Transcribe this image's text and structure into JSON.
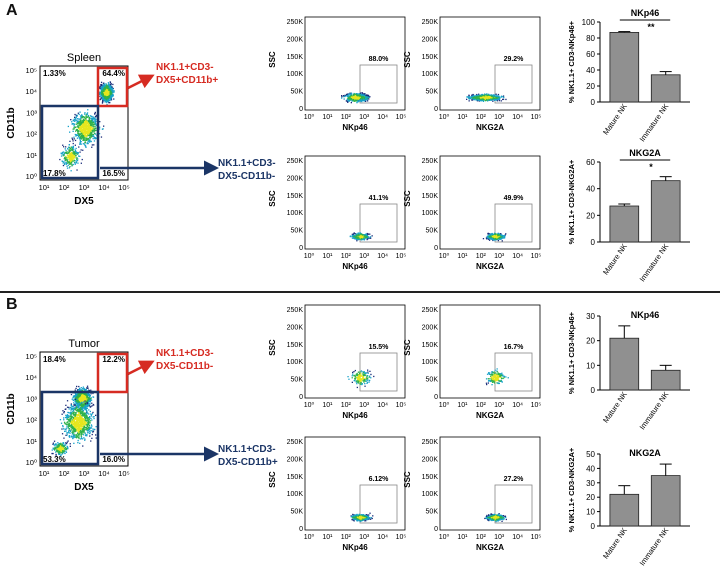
{
  "panels": [
    {
      "letter": "A",
      "main": {
        "title": "Spleen",
        "ylabel": "CD11b",
        "xlabel": "DX5",
        "ticks": [
          "10¹",
          "10²",
          "10³",
          "10⁴",
          "10⁵"
        ],
        "yticks": [
          "10⁵",
          "10⁴",
          "10³",
          "10²",
          "10¹",
          "10⁰"
        ],
        "quadrants": {
          "tl": "1.33%",
          "tr": "64.4%",
          "bl": "17.8%",
          "br": "16.5%"
        },
        "hot": "tr"
      },
      "arrow_top": {
        "text1": "NK1.1+CD3-",
        "text2": "DX5+CD11b+"
      },
      "arrow_bottom": {
        "text1": "NK1.1+CD3-",
        "text2": "DX5-CD11b-"
      },
      "facs": [
        {
          "xlabel": "NKp46",
          "ylabel": "SSC",
          "gate_pct": "88.0%",
          "density": "hot"
        },
        {
          "xlabel": "NKG2A",
          "ylabel": "SSC",
          "gate_pct": "29.2%",
          "density": "wide"
        },
        {
          "xlabel": "NKp46",
          "ylabel": "SSC",
          "gate_pct": "41.1%",
          "density": "mid"
        },
        {
          "xlabel": "NKG2A",
          "ylabel": "SSC",
          "gate_pct": "49.9%",
          "density": "mid"
        }
      ],
      "bars": [
        {
          "title": "NKp46",
          "ylabel": "% NK1.1+ CD3-NKp46+",
          "ylim": [
            0,
            100
          ],
          "yticks": [
            "100",
            "80",
            "60",
            "40",
            "20",
            "0"
          ],
          "categories": [
            "Mature NK",
            "Immature NK"
          ],
          "values": [
            87,
            34
          ],
          "errors": [
            1,
            4
          ],
          "sig": "**"
        },
        {
          "title": "NKG2A",
          "ylabel": "% NK1.1+ CD3-NKG2A+",
          "ylim": [
            0,
            60
          ],
          "yticks": [
            "60",
            "40",
            "20",
            "0"
          ],
          "categories": [
            "Mature NK",
            "Immature NK"
          ],
          "values": [
            27,
            46
          ],
          "errors": [
            1.5,
            3
          ],
          "sig": "*"
        }
      ]
    },
    {
      "letter": "B",
      "main": {
        "title": "Tumor",
        "ylabel": "CD11b",
        "xlabel": "DX5",
        "ticks": [
          "10¹",
          "10²",
          "10³",
          "10⁴",
          "10⁵"
        ],
        "yticks": [
          "10⁵",
          "10⁴",
          "10³",
          "10²",
          "10¹",
          "10⁰"
        ],
        "quadrants": {
          "tl": "18.4%",
          "tr": "12.2%",
          "bl": "53.3%",
          "br": "16.0%"
        },
        "hot": "center"
      },
      "arrow_top": {
        "text1": "NK1.1+CD3-",
        "text2": "DX5-CD11b-"
      },
      "arrow_bottom": {
        "text1": "NK1.1+CD3-",
        "text2": "DX5-CD11b+"
      },
      "facs": [
        {
          "xlabel": "NKp46",
          "ylabel": "SSC",
          "gate_pct": "15.5%",
          "density": "sparse"
        },
        {
          "xlabel": "NKG2A",
          "ylabel": "SSC",
          "gate_pct": "16.7%",
          "density": "sparse"
        },
        {
          "xlabel": "NKp46",
          "ylabel": "SSC",
          "gate_pct": "6.12%",
          "density": "mid"
        },
        {
          "xlabel": "NKG2A",
          "ylabel": "SSC",
          "gate_pct": "27.2%",
          "density": "mid"
        }
      ],
      "bars": [
        {
          "title": "NKp46",
          "ylabel": "% NK1.1+ CD3-NKp46+",
          "ylim": [
            0,
            30
          ],
          "yticks": [
            "30",
            "20",
            "10",
            "0"
          ],
          "categories": [
            "Mature NK",
            "Immature NK"
          ],
          "values": [
            21,
            8
          ],
          "errors": [
            5,
            2
          ],
          "sig": ""
        },
        {
          "title": "NKG2A",
          "ylabel": "% NK1.1+ CD3-NKG2A+",
          "ylim": [
            0,
            50
          ],
          "yticks": [
            "50",
            "40",
            "30",
            "20",
            "10",
            "0"
          ],
          "categories": [
            "Mature NK",
            "Immature NK"
          ],
          "values": [
            22,
            35
          ],
          "errors": [
            6,
            8
          ],
          "sig": ""
        }
      ]
    }
  ],
  "facs_axes": {
    "yticks": [
      "250K",
      "200K",
      "150K",
      "100K",
      "50K",
      "0"
    ],
    "xticks": [
      "10⁰",
      "10¹",
      "10²",
      "10³",
      "10⁴",
      "10⁵"
    ]
  },
  "colors": {
    "red": "#d62b22",
    "navy": "#1b3566",
    "bar_fill": "#909090"
  }
}
